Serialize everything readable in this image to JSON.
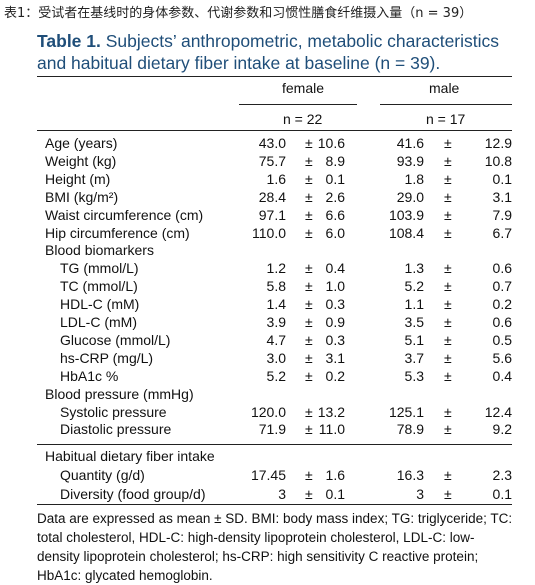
{
  "caption_cn": "表1：受试者在基线时的身体参数、代谢参数和习惯性膳食纤维摄入量（n = 39）",
  "title": {
    "label": "Table 1.",
    "text": "Subjects’ anthropometric, metabolic characteristics and habitual dietary fiber intake at baseline (n = 39)."
  },
  "columns": {
    "female": "female",
    "male": "male",
    "female_n": "n = 22",
    "male_n": "n = 17",
    "pm": "±"
  },
  "rows": [
    {
      "label": "Age (years)",
      "indent": false,
      "f_mean": "43.0",
      "f_sd": "10.6",
      "m_mean": "41.6",
      "m_sd": "12.9"
    },
    {
      "label": "Weight (kg)",
      "indent": false,
      "f_mean": "75.7",
      "f_sd": "8.9",
      "m_mean": "93.9",
      "m_sd": "10.8"
    },
    {
      "label": "Height (m)",
      "indent": false,
      "f_mean": "1.6",
      "f_sd": "0.1",
      "m_mean": "1.8",
      "m_sd": "0.1"
    },
    {
      "label": "BMI (kg/m²)",
      "indent": false,
      "f_mean": "28.4",
      "f_sd": "2.6",
      "m_mean": "29.0",
      "m_sd": "3.1"
    },
    {
      "label": "Waist circumference (cm)",
      "indent": false,
      "f_mean": "97.1",
      "f_sd": "6.6",
      "m_mean": "103.9",
      "m_sd": "7.9"
    },
    {
      "label": "Hip circumference (cm)",
      "indent": false,
      "f_mean": "110.0",
      "f_sd": "6.0",
      "m_mean": "108.4",
      "m_sd": "6.7"
    },
    {
      "label": "Blood biomarkers",
      "indent": false,
      "section": true
    },
    {
      "label": "TG (mmol/L)",
      "indent": true,
      "f_mean": "1.2",
      "f_sd": "0.4",
      "m_mean": "1.3",
      "m_sd": "0.6"
    },
    {
      "label": "TC (mmol/L)",
      "indent": true,
      "f_mean": "5.8",
      "f_sd": "1.0",
      "m_mean": "5.2",
      "m_sd": "0.7"
    },
    {
      "label": "HDL-C (mM)",
      "indent": true,
      "f_mean": "1.4",
      "f_sd": "0.3",
      "m_mean": "1.1",
      "m_sd": "0.2"
    },
    {
      "label": "LDL-C (mM)",
      "indent": true,
      "f_mean": "3.9",
      "f_sd": "0.9",
      "m_mean": "3.5",
      "m_sd": "0.6"
    },
    {
      "label": "Glucose (mmol/L)",
      "indent": true,
      "f_mean": "4.7",
      "f_sd": "0.3",
      "m_mean": "5.1",
      "m_sd": "0.5"
    },
    {
      "label": "hs-CRP (mg/L)",
      "indent": true,
      "f_mean": "3.0",
      "f_sd": "3.1",
      "m_mean": "3.7",
      "m_sd": "5.6"
    },
    {
      "label": "HbA1c %",
      "indent": true,
      "f_mean": "5.2",
      "f_sd": "0.2",
      "m_mean": "5.3",
      "m_sd": "0.4"
    },
    {
      "label": "Blood pressure (mmHg)",
      "indent": false,
      "section": true
    },
    {
      "label": "Systolic pressure",
      "indent": true,
      "f_mean": "120.0",
      "f_sd": "13.2",
      "m_mean": "125.1",
      "m_sd": "12.4"
    },
    {
      "label": "Diastolic pressure",
      "indent": true,
      "f_mean": "71.9",
      "f_sd": "11.0",
      "m_mean": "78.9",
      "m_sd": "9.2"
    }
  ],
  "rows2": [
    {
      "label": "Habitual dietary fiber intake",
      "indent": false,
      "section": true
    },
    {
      "label": "Quantity (g/d)",
      "indent": true,
      "f_mean": "17.45",
      "f_sd": "1.6",
      "m_mean": "16.3",
      "m_sd": "2.3"
    },
    {
      "label": "Diversity (food group/d)",
      "indent": true,
      "f_mean": "3",
      "f_sd": "0.1",
      "m_mean": "3",
      "m_sd": "0.1"
    }
  ],
  "notes": "Data are expressed as mean ± SD. BMI: body mass index; TG: triglyceride; TC: total cholesterol, HDL-C: high-density lipoprotein cholesterol, LDL-C: low-density lipoprotein cholesterol; hs-CRP: high sensitivity C reactive protein; HbA1c: glycated hemoglobin."
}
